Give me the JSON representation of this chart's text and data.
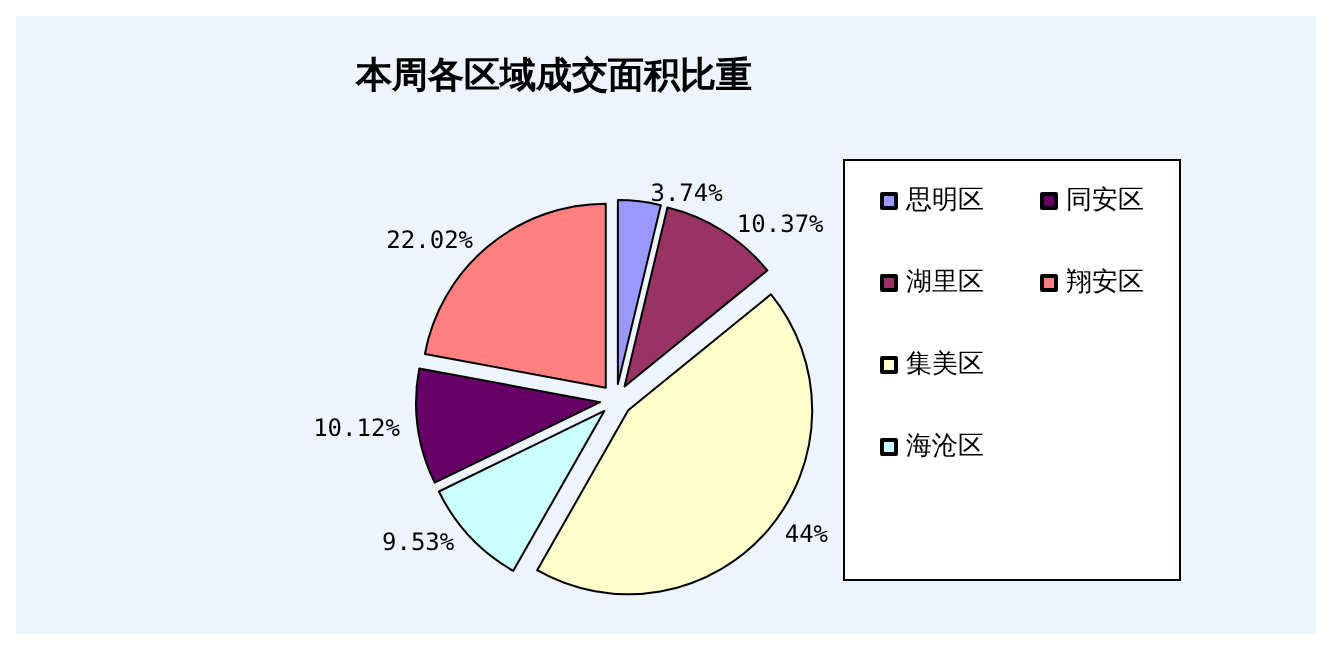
{
  "chart_data": {
    "type": "pie",
    "title": "本周各区域成交面积比重",
    "categories": [
      "思明区",
      "湖里区",
      "集美区",
      "海沧区",
      "同安区",
      "翔安区"
    ],
    "values": [
      3.74,
      10.37,
      44,
      9.53,
      10.12,
      22.02
    ],
    "value_labels": [
      "3.74%",
      "10.37%",
      "44%",
      "9.53%",
      "10.12%",
      "22.02%"
    ],
    "colors": [
      "#9999ff",
      "#993366",
      "#ffffcc",
      "#ccffff",
      "#660066",
      "#ff8080"
    ],
    "legend": "right"
  }
}
